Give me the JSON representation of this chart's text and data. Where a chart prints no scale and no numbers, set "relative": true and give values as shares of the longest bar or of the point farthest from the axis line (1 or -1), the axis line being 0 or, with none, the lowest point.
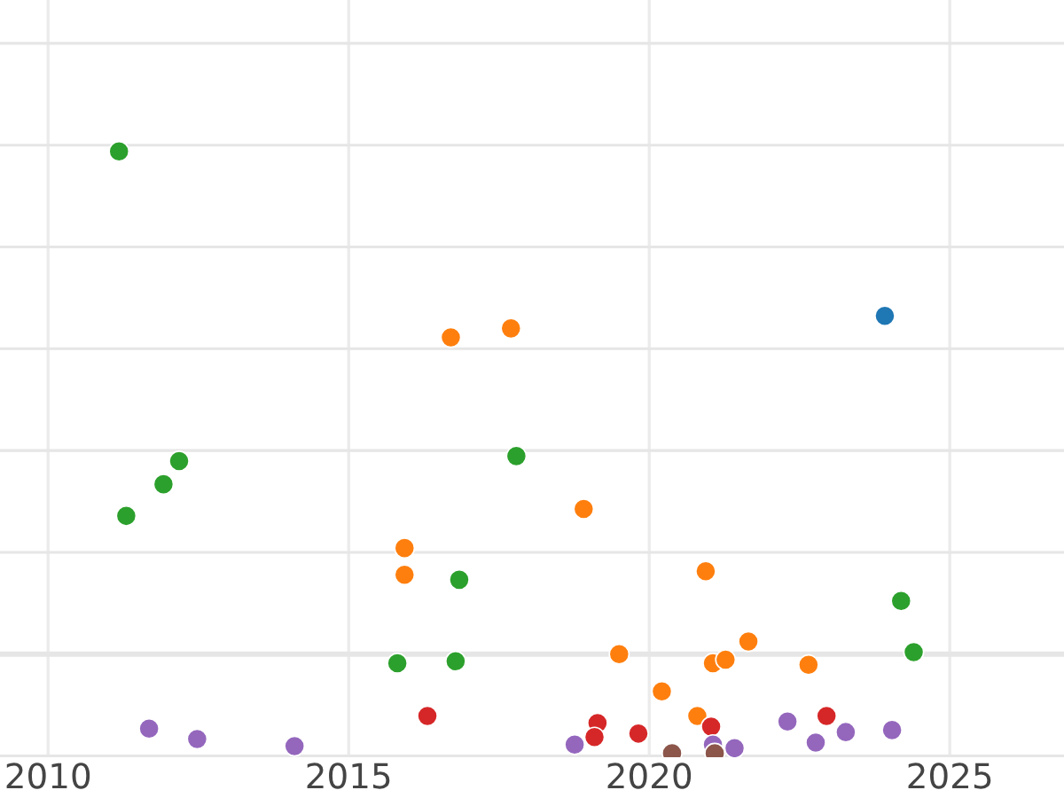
{
  "chart_data": {
    "type": "scatter",
    "relative": true,
    "grid": true,
    "tick_labels": "x",
    "marker": "circle",
    "xlim": [
      2009.2,
      2026.9
    ],
    "xticks": [
      2010,
      2015,
      2020,
      2025
    ],
    "series": [
      {
        "color": "#2ca02c",
        "x": [
          2011.18,
          2011.3,
          2011.92,
          2012.18,
          2015.81,
          2016.78,
          2016.84,
          2017.79,
          2024.19,
          2024.4
        ],
        "values": [
          1,
          0.275,
          0.338,
          0.384,
          -0.018,
          -0.014,
          0.148,
          0.394,
          0.106,
          0.004
        ]
      },
      {
        "color": "#ff7f0e",
        "x": [
          2016.7,
          2017.7,
          2015.93,
          2015.93,
          2018.91,
          2019.5,
          2020.21,
          2020.8,
          2020.94,
          2021.06,
          2021.27,
          2021.65,
          2022.65
        ],
        "values": [
          0.63,
          0.648,
          0.211,
          0.158,
          0.289,
          0,
          -0.074,
          -0.123,
          0.165,
          -0.018,
          -0.011,
          0.025,
          -0.021
        ]
      },
      {
        "color": "#1f77b4",
        "x": [
          2023.92
        ],
        "values": [
          0.673
        ]
      },
      {
        "color": "#d62728",
        "x": [
          2016.31,
          2019.14,
          2019.09,
          2019.82,
          2021.03,
          2022.95
        ],
        "values": [
          -0.123,
          -0.137,
          -0.165,
          -0.158,
          -0.144,
          -0.123
        ]
      },
      {
        "color": "#9467bd",
        "x": [
          2011.68,
          2012.48,
          2014.1,
          2018.76,
          2021.06,
          2021.42,
          2022.3,
          2022.77,
          2023.27,
          2024.04
        ],
        "values": [
          -0.148,
          -0.169,
          -0.183,
          -0.18,
          -0.18,
          -0.187,
          -0.134,
          -0.176,
          -0.155,
          -0.151
        ]
      },
      {
        "color": "#8c564b",
        "x": [
          2020.38,
          2021.09
        ],
        "values": [
          -0.197,
          -0.197
        ]
      }
    ]
  }
}
